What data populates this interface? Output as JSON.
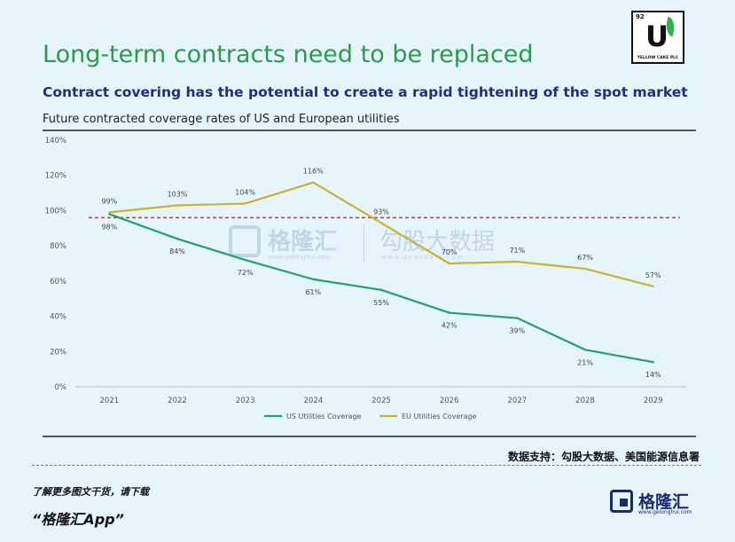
{
  "header": {
    "title": "Long-term contracts need to be replaced",
    "subtitle": "Contract covering has the potential to create a rapid tightening of the spot market",
    "caption": "Future contracted coverage rates of US and European utilities"
  },
  "logo": {
    "number": "92",
    "letter": "U",
    "text": "YELLOW CAKE PLC"
  },
  "chart_data": {
    "type": "line",
    "title": "",
    "xlabel": "",
    "ylabel": "",
    "x": [
      "2021",
      "2022",
      "2023",
      "2024",
      "2025",
      "2026",
      "2027",
      "2028",
      "2029"
    ],
    "ylim": [
      0,
      140
    ],
    "yticks": [
      0,
      20,
      40,
      60,
      80,
      100,
      120,
      140
    ],
    "ytick_labels": [
      "0%",
      "20%",
      "40%",
      "60%",
      "80%",
      "100%",
      "120%",
      "140%"
    ],
    "reference_line": {
      "value": 96,
      "style": "dashed",
      "color": "#d0312d"
    },
    "grid": false,
    "legend": "bottom-center",
    "series": [
      {
        "name": "US Utilities Coverage",
        "color": "#21a366",
        "values": [
          98,
          84,
          72,
          61,
          55,
          42,
          39,
          21,
          14
        ],
        "labels": [
          "98%",
          "84%",
          "72%",
          "61%",
          "55%",
          "42%",
          "39%",
          "21%",
          "14%"
        ]
      },
      {
        "name": "EU Utilities Coverage",
        "color": "#c9b336",
        "values": [
          99,
          103,
          104,
          116,
          93,
          70,
          71,
          67,
          57
        ],
        "labels": [
          "99%",
          "103%",
          "104%",
          "116%",
          "93%",
          "70%",
          "71%",
          "67%",
          "57%"
        ]
      }
    ]
  },
  "source": "数据支持：勾股大数据、美国能源信息署",
  "footer": {
    "line1": "了解更多图文干货，请下载",
    "line2": "“格隆汇App”"
  },
  "brand": {
    "name": "格隆汇",
    "url": "www.gelonghui.com"
  },
  "watermark": {
    "name": "格隆汇",
    "url": "www.gelonghui.com",
    "name2": "勾股大数据",
    "url2": "www.gogudata.com"
  }
}
